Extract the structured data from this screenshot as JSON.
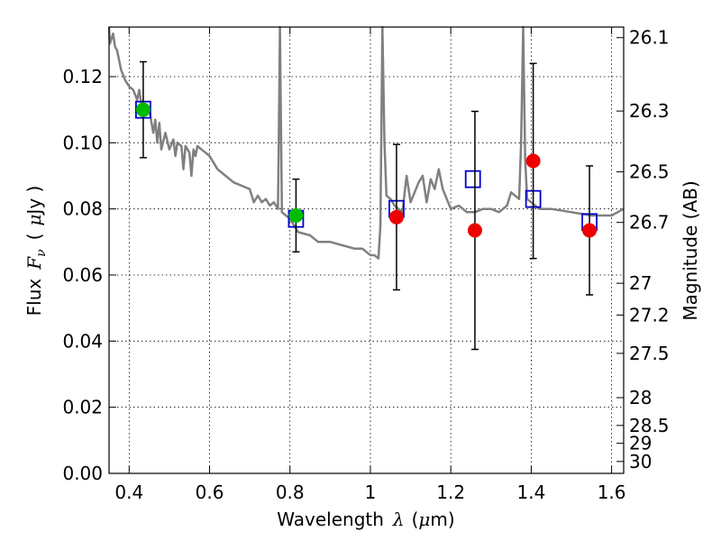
{
  "chart_data": {
    "type": "scatter",
    "xlabel": {
      "prefix": "Wavelength",
      "symbol": "λ",
      "unit_open": "(",
      "unit_mu": "μ",
      "unit_rest": "m)"
    },
    "ylabel": {
      "prefix": "Flux",
      "symbol": "F",
      "subscript": "ν",
      "unit_open": "(",
      "unit_mu": "μ",
      "unit_rest": "Jy )"
    },
    "y2label": "Magnitude (AB)",
    "xlim": [
      0.35,
      1.63
    ],
    "ylim": [
      0.0,
      0.135
    ],
    "grid": true,
    "x_ticks": [
      0.4,
      0.6,
      0.8,
      1.0,
      1.2,
      1.4,
      1.6
    ],
    "x_tick_labels": [
      "0.4",
      "0.6",
      "0.8",
      "1",
      "1.2",
      "1.4",
      "1.6"
    ],
    "y_ticks": [
      0.0,
      0.02,
      0.04,
      0.06,
      0.08,
      0.1,
      0.12
    ],
    "y_tick_labels": [
      "0.00",
      "0.02",
      "0.04",
      "0.06",
      "0.08",
      "0.10",
      "0.12"
    ],
    "magnitude_ticks": [
      {
        "label": "26.1",
        "flux": 0.1318
      },
      {
        "label": "26.3",
        "flux": 0.1096
      },
      {
        "label": "26.5",
        "flux": 0.0912
      },
      {
        "label": "26.7",
        "flux": 0.0759
      },
      {
        "label": "27",
        "flux": 0.0575
      },
      {
        "label": "27.2",
        "flux": 0.0479
      },
      {
        "label": "27.5",
        "flux": 0.0363
      },
      {
        "label": "28",
        "flux": 0.0229
      },
      {
        "label": "28.5",
        "flux": 0.0145
      },
      {
        "label": "29",
        "flux": 0.0091
      },
      {
        "label": "30",
        "flux": 0.0036
      }
    ],
    "model_spectrum": {
      "color": "#808080",
      "x": [
        0.35,
        0.352,
        0.36,
        0.365,
        0.37,
        0.38,
        0.39,
        0.4,
        0.41,
        0.42,
        0.425,
        0.43,
        0.44,
        0.45,
        0.46,
        0.465,
        0.47,
        0.475,
        0.48,
        0.49,
        0.5,
        0.51,
        0.515,
        0.52,
        0.53,
        0.535,
        0.54,
        0.55,
        0.555,
        0.56,
        0.565,
        0.57,
        0.58,
        0.59,
        0.6,
        0.62,
        0.64,
        0.66,
        0.68,
        0.7,
        0.71,
        0.72,
        0.73,
        0.74,
        0.75,
        0.76,
        0.77,
        0.772,
        0.775,
        0.78,
        0.8,
        0.82,
        0.85,
        0.87,
        0.9,
        0.93,
        0.96,
        0.98,
        1.0,
        1.01,
        1.02,
        1.025,
        1.03,
        1.035,
        1.04,
        1.05,
        1.06,
        1.08,
        1.09,
        1.1,
        1.12,
        1.13,
        1.14,
        1.15,
        1.16,
        1.17,
        1.18,
        1.19,
        1.2,
        1.22,
        1.24,
        1.26,
        1.28,
        1.3,
        1.32,
        1.34,
        1.35,
        1.37,
        1.375,
        1.38,
        1.385,
        1.39,
        1.4,
        1.42,
        1.45,
        1.5,
        1.55,
        1.6,
        1.63
      ],
      "y": [
        0.135,
        0.13,
        0.133,
        0.129,
        0.128,
        0.122,
        0.119,
        0.117,
        0.116,
        0.113,
        0.116,
        0.112,
        0.109,
        0.11,
        0.103,
        0.107,
        0.1,
        0.106,
        0.098,
        0.103,
        0.098,
        0.101,
        0.096,
        0.1,
        0.099,
        0.092,
        0.099,
        0.097,
        0.09,
        0.098,
        0.096,
        0.099,
        0.098,
        0.097,
        0.096,
        0.092,
        0.09,
        0.088,
        0.087,
        0.086,
        0.082,
        0.084,
        0.082,
        0.083,
        0.081,
        0.082,
        0.08,
        0.1,
        0.135,
        0.079,
        0.077,
        0.073,
        0.072,
        0.07,
        0.07,
        0.069,
        0.068,
        0.068,
        0.066,
        0.066,
        0.065,
        0.075,
        0.135,
        0.1,
        0.084,
        0.083,
        0.081,
        0.079,
        0.09,
        0.082,
        0.088,
        0.09,
        0.082,
        0.089,
        0.086,
        0.092,
        0.086,
        0.083,
        0.08,
        0.081,
        0.079,
        0.079,
        0.08,
        0.08,
        0.079,
        0.081,
        0.085,
        0.083,
        0.1,
        0.135,
        0.095,
        0.083,
        0.082,
        0.08,
        0.08,
        0.079,
        0.078,
        0.078,
        0.08
      ]
    },
    "series": [
      {
        "marker": "open-square",
        "color": "#0000cc",
        "x": [
          0.435,
          0.815,
          1.065,
          1.255,
          1.405,
          1.545
        ],
        "y": [
          0.11,
          0.077,
          0.08,
          0.089,
          0.083,
          0.076
        ]
      },
      {
        "marker": "filled-circle",
        "color": "#00bb00",
        "x": [
          0.435,
          0.815
        ],
        "y": [
          0.11,
          0.078
        ],
        "err": [
          0.0145,
          0.011
        ]
      },
      {
        "marker": "filled-circle",
        "color": "#ee0000",
        "x": [
          1.065,
          1.26,
          1.405,
          1.545
        ],
        "y": [
          0.0775,
          0.0735,
          0.0945,
          0.0735
        ],
        "err": [
          0.022,
          0.036,
          0.0295,
          0.0195
        ]
      }
    ]
  }
}
